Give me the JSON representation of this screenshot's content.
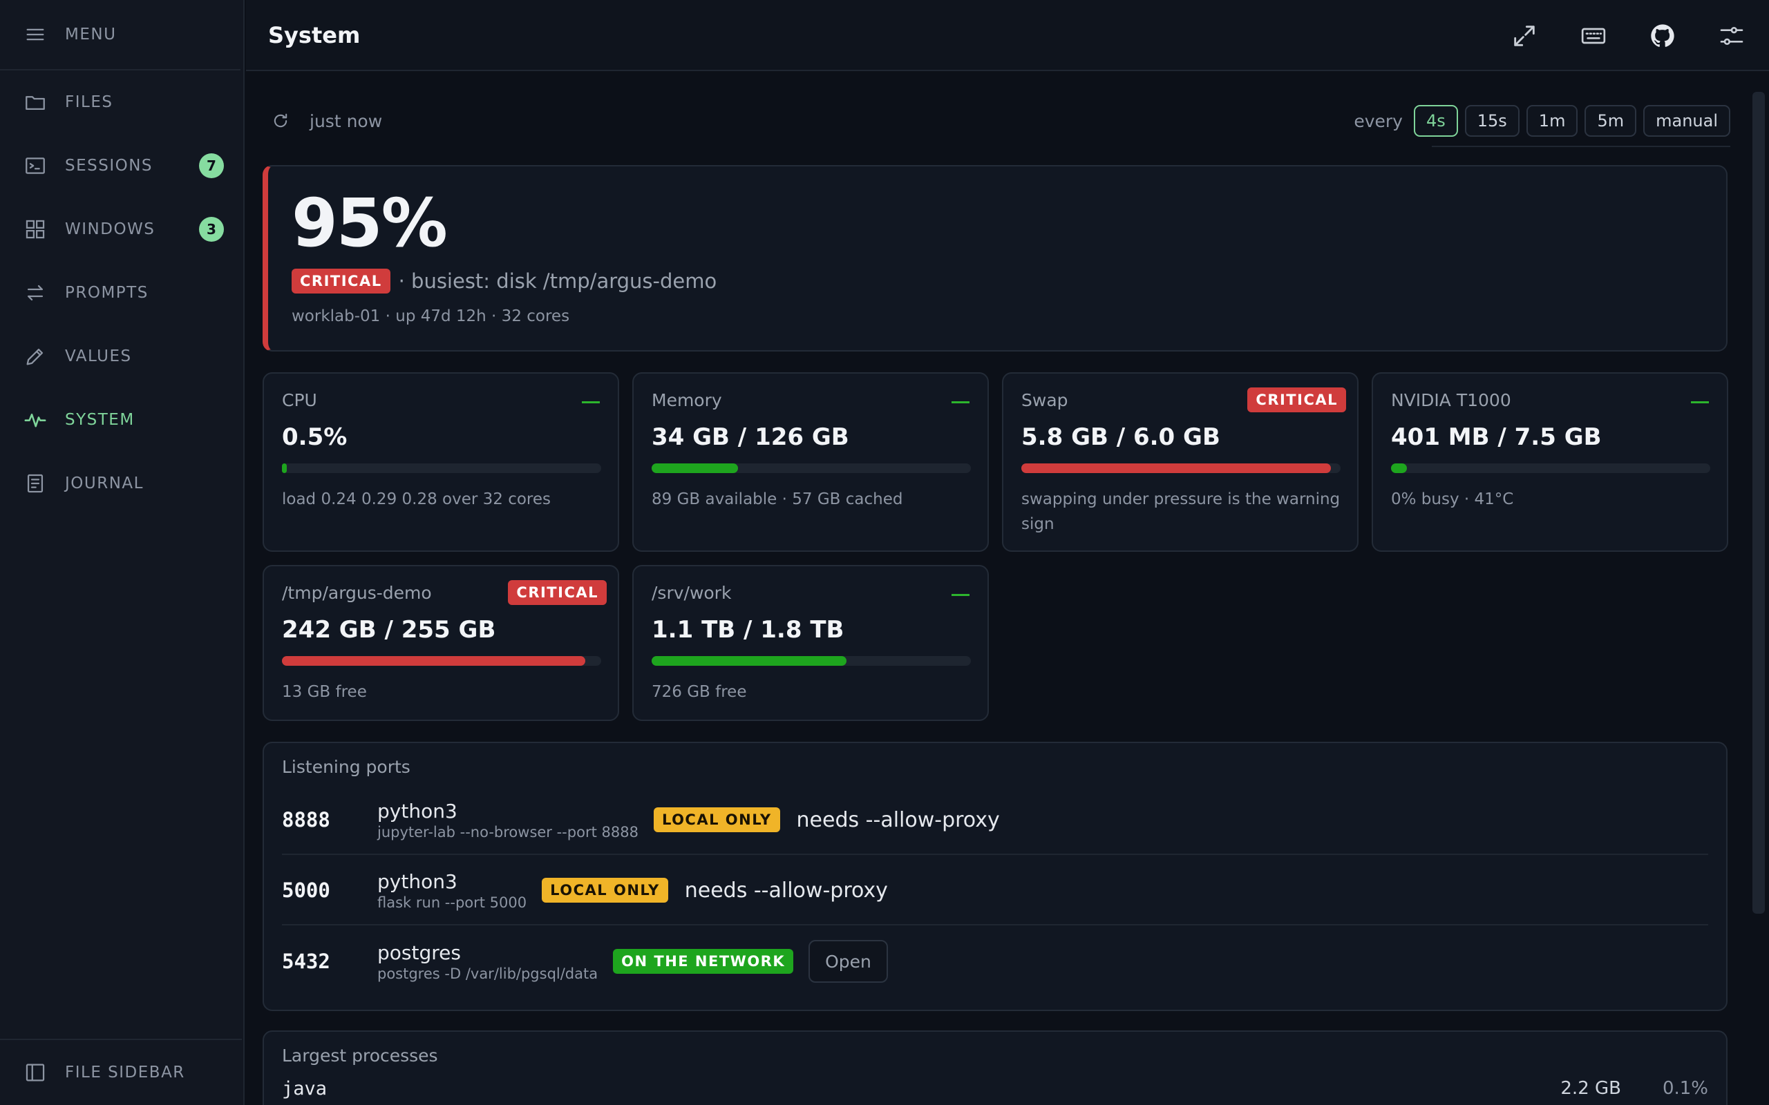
{
  "sidebar": {
    "menu_label": "MENU",
    "items": [
      {
        "label": "FILES"
      },
      {
        "label": "SESSIONS",
        "badge": "7"
      },
      {
        "label": "WINDOWS",
        "badge": "3"
      },
      {
        "label": "PROMPTS"
      },
      {
        "label": "VALUES"
      },
      {
        "label": "SYSTEM",
        "active": true
      },
      {
        "label": "JOURNAL"
      }
    ],
    "footer_label": "FILE SIDEBAR"
  },
  "header": {
    "title": "System",
    "icons": [
      "expand-icon",
      "keyboard-icon",
      "github-icon",
      "settings-sliders-icon"
    ]
  },
  "refresh": {
    "status": "just now",
    "every_label": "every",
    "intervals": [
      "4s",
      "15s",
      "1m",
      "5m",
      "manual"
    ],
    "selected": "4s"
  },
  "hero": {
    "percent": "95%",
    "badge": "CRITICAL",
    "busiest": "· busiest: disk /tmp/argus-demo",
    "subtitle": "worklab-01 · up 47d 12h · 32 cores"
  },
  "metrics": [
    {
      "title": "CPU",
      "value": "0.5%",
      "status": "ok",
      "usage_fraction": 0.005,
      "note": "load 0.24 0.29 0.28 over 32 cores"
    },
    {
      "title": "Memory",
      "value": "34 GB / 126 GB",
      "status": "ok",
      "usage_fraction": 0.27,
      "note": "89 GB available · 57 GB cached"
    },
    {
      "title": "Swap",
      "value": "5.8 GB / 6.0 GB",
      "status": "CRITICAL",
      "usage_fraction": 0.97,
      "note": "swapping under pressure is the warning sign"
    },
    {
      "title": "NVIDIA T1000",
      "value": "401 MB / 7.5 GB",
      "status": "ok",
      "usage_fraction": 0.05,
      "note": "0% busy · 41°C"
    },
    {
      "title": "/tmp/argus-demo",
      "value": "242 GB / 255 GB",
      "status": "CRITICAL",
      "usage_fraction": 0.95,
      "note": "13 GB free"
    },
    {
      "title": "/srv/work",
      "value": "1.1 TB / 1.8 TB",
      "status": "ok",
      "usage_fraction": 0.61,
      "note": "726 GB free"
    }
  ],
  "ports": {
    "title": "Listening ports",
    "rows": [
      {
        "port": "8888",
        "process": "python3",
        "command": "jupyter-lab --no-browser --port 8888",
        "badge": "LOCAL ONLY",
        "note": "needs --allow-proxy"
      },
      {
        "port": "5000",
        "process": "python3",
        "command": "flask run --port 5000",
        "badge": "LOCAL ONLY",
        "note": "needs --allow-proxy"
      },
      {
        "port": "5432",
        "process": "postgres",
        "command": "postgres -D /var/lib/pgsql/data",
        "badge": "ON THE NETWORK",
        "action": "Open"
      }
    ]
  },
  "processes": {
    "title": "Largest processes",
    "rows": [
      {
        "name": "java",
        "memory": "2.2 GB",
        "cpu": "0.1%"
      }
    ]
  },
  "colors": {
    "accent": "#7fd49a",
    "critical": "#d03c3c",
    "ok": "#1ea51e",
    "warning": "#f0b428",
    "background": "#0c1018"
  }
}
